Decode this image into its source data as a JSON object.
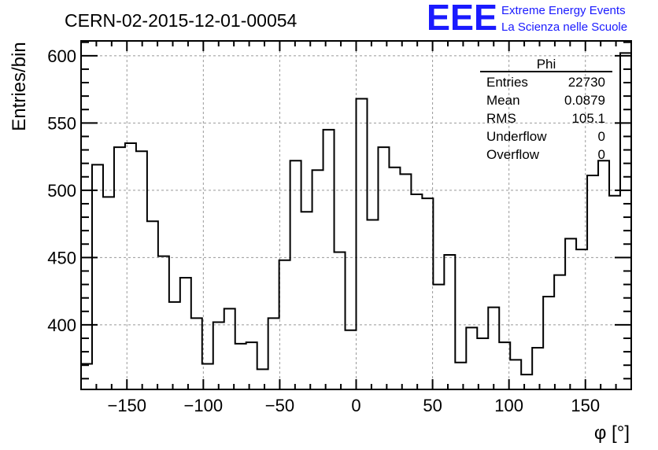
{
  "chart_data": {
    "type": "bar",
    "style": "step-histogram",
    "title": "CERN-02-2015-12-01-00054",
    "xlabel": "φ [°]",
    "ylabel": "Entries/bin",
    "xlim": [
      -180,
      180
    ],
    "ylim": [
      352,
      611
    ],
    "xticks": [
      -150,
      -100,
      -50,
      0,
      50,
      100,
      150
    ],
    "xtick_labels": [
      "−150",
      "−100",
      "−50",
      "0",
      "50",
      "100",
      "150"
    ],
    "yticks": [
      400,
      450,
      500,
      550,
      600
    ],
    "ytick_labels": [
      "400",
      "450",
      "500",
      "550",
      "600"
    ],
    "grid": true,
    "bin_width": 7.2,
    "values": [
      371,
      519,
      495,
      532,
      535,
      529,
      477,
      451,
      417,
      435,
      405,
      371,
      402,
      412,
      386,
      387,
      367,
      405,
      448,
      522,
      484,
      515,
      545,
      454,
      396,
      568,
      478,
      532,
      517,
      512,
      497,
      494,
      430,
      452,
      372,
      398,
      390,
      413,
      387,
      374,
      363,
      383,
      421,
      437,
      464,
      456,
      511,
      522,
      496,
      602
    ],
    "stats": {
      "name": "Phi",
      "rows": [
        {
          "label": "Entries",
          "value": "22730"
        },
        {
          "label": "Mean",
          "value": "0.0879"
        },
        {
          "label": "RMS",
          "value": "105.1"
        },
        {
          "label": "Underflow",
          "value": "0"
        },
        {
          "label": "Overflow",
          "value": "0"
        }
      ],
      "placement": "top-right"
    }
  },
  "logo": {
    "mark": "EEE",
    "line1": "Extreme Energy Events",
    "line2": "La Scienza nelle Scuole",
    "color": "#1a1aff"
  }
}
